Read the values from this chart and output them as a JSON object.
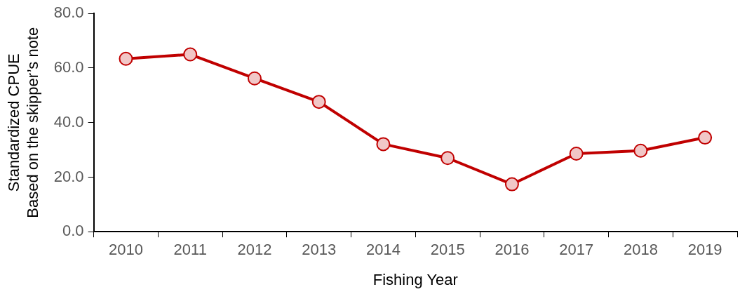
{
  "chart_data": {
    "type": "line",
    "xlabel": "Fishing Year",
    "ylabel": "Standardized CPUE\nBased on the skipper’s note",
    "categories": [
      "2010",
      "2011",
      "2012",
      "2013",
      "2014",
      "2015",
      "2016",
      "2017",
      "2018",
      "2019"
    ],
    "series": [
      {
        "color": "#c00000",
        "values": [
          63.4,
          65.0,
          56.2,
          47.6,
          32.1,
          27.0,
          17.4,
          28.6,
          29.7,
          34.5
        ]
      }
    ],
    "ylim": [
      0,
      80
    ],
    "yticks": [
      {
        "value": 0,
        "label": "0.0"
      },
      {
        "value": 20,
        "label": "20.0"
      },
      {
        "value": 40,
        "label": "40.0"
      },
      {
        "value": 60,
        "label": "60.0"
      },
      {
        "value": 80,
        "label": "80.0"
      }
    ],
    "grid": false,
    "legend": false,
    "marker": "circle",
    "line_style": "solid"
  }
}
